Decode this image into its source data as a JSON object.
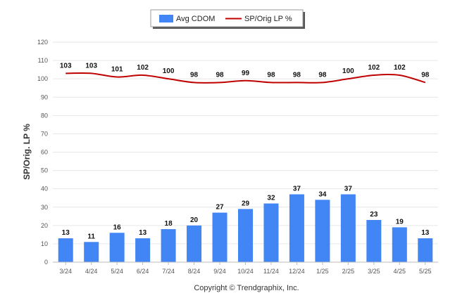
{
  "chart_data": {
    "type": "bar",
    "title": "",
    "xlabel": "",
    "ylabel": "SP/Orig. LP %",
    "ylim": [
      0,
      120
    ],
    "yticks": [
      0,
      10,
      20,
      30,
      40,
      50,
      60,
      70,
      80,
      90,
      100,
      110,
      120
    ],
    "grid": true,
    "legend_position": "top-center",
    "categories": [
      "3/24",
      "4/24",
      "5/24",
      "6/24",
      "7/24",
      "8/24",
      "9/24",
      "10/24",
      "11/24",
      "12/24",
      "1/25",
      "2/25",
      "3/25",
      "4/25",
      "5/25"
    ],
    "series": [
      {
        "name": "Avg CDOM",
        "type": "bar",
        "color": "#4285f4",
        "values": [
          13,
          11,
          16,
          13,
          18,
          20,
          27,
          29,
          32,
          37,
          34,
          37,
          23,
          19,
          13
        ]
      },
      {
        "name": "SP/Orig LP %",
        "type": "line",
        "color": "#c00000",
        "values": [
          103,
          103,
          101,
          102,
          100,
          98,
          98,
          99,
          98,
          98,
          98,
          100,
          102,
          102,
          98
        ]
      }
    ]
  },
  "footer": {
    "copyright": "Copyright © Trendgraphix, Inc."
  }
}
